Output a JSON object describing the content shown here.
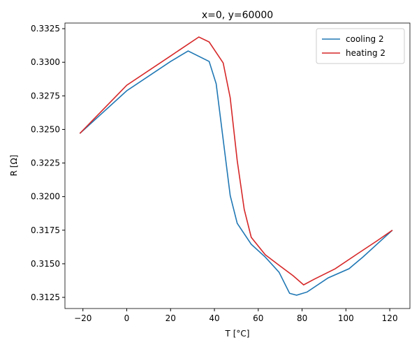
{
  "chart_data": {
    "type": "line",
    "title": "x=0, y=60000",
    "x_label": "T [°C]",
    "y_label": "R [Ω]",
    "xlim": [
      -28.2,
      129.2
    ],
    "ylim": [
      0.31167,
      0.33292
    ],
    "xticks": [
      {
        "value": -20,
        "label": "−20"
      },
      0,
      20,
      40,
      60,
      80,
      100,
      120
    ],
    "yticks": [
      0.3125,
      {
        "value": 0.315,
        "label": "0.3150"
      },
      0.3175,
      {
        "value": 0.32,
        "label": "0.3200"
      },
      0.3225,
      {
        "value": 0.325,
        "label": "0.3250"
      },
      0.3275,
      {
        "value": 0.33,
        "label": "0.3300"
      },
      0.3325
    ],
    "legend": "upper right",
    "grid": false,
    "series": [
      {
        "name": "cooling 2",
        "color": "#1f77b4",
        "x": [
          -21.4,
          0,
          20,
          28,
          37.6,
          40.8,
          44,
          47.2,
          50.4,
          56.8,
          63.2,
          69.5,
          74.3,
          77.5,
          82.3,
          91.9,
          101.4,
          107.8,
          115.8,
          121.2
        ],
        "values": [
          0.3247,
          0.32788,
          0.33006,
          0.33084,
          0.33006,
          0.3284,
          0.32424,
          0.32008,
          0.31801,
          0.31645,
          0.3155,
          0.31437,
          0.3128,
          0.31266,
          0.3129,
          0.31395,
          0.31463,
          0.31551,
          0.3167,
          0.3175
        ]
      },
      {
        "name": "heating 2",
        "color": "#d62728",
        "x": [
          -21.4,
          0,
          20,
          32.9,
          37.6,
          40.8,
          44,
          47.2,
          50.4,
          53.6,
          56.8,
          63.2,
          69.5,
          75.9,
          80.7,
          85.5,
          95.1,
          104.6,
          114.2,
          121.2
        ],
        "values": [
          0.3247,
          0.32829,
          0.33047,
          0.33188,
          0.33151,
          0.33073,
          0.32995,
          0.32736,
          0.32268,
          0.31905,
          0.31697,
          0.31567,
          0.31489,
          0.31411,
          0.31343,
          0.31385,
          0.31463,
          0.31567,
          0.31671,
          0.3175
        ]
      }
    ]
  }
}
